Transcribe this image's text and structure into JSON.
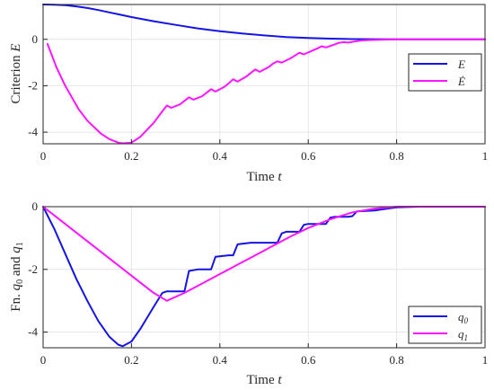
{
  "colors": {
    "blue": "#1414e6",
    "magenta": "#ff14ff"
  },
  "chart_data": [
    {
      "type": "line",
      "xlabel": "Time t",
      "xlabel_text": "Time",
      "xlabel_var": "t",
      "ylabel": "Criterion E",
      "ylabel_text": "Criterion",
      "ylabel_var": "E",
      "xlim": [
        0,
        1
      ],
      "ylim": [
        -4.5,
        1.5
      ],
      "xticks": [
        0,
        0.2,
        0.4,
        0.6,
        0.8,
        1
      ],
      "xtick_labels": [
        "0",
        "0.2",
        "0.4",
        "0.6",
        "0.8",
        "1"
      ],
      "yticks": [
        0,
        -2,
        -4
      ],
      "ytick_labels": [
        "0",
        "-2",
        "-4"
      ],
      "grid": true,
      "legend_position": "right",
      "series": [
        {
          "name": "E",
          "color": "#1414e6",
          "x": [
            0,
            0.025,
            0.05,
            0.075,
            0.1,
            0.125,
            0.15,
            0.175,
            0.2,
            0.25,
            0.3,
            0.35,
            0.4,
            0.45,
            0.5,
            0.55,
            0.6,
            0.65,
            0.7,
            0.75,
            0.8,
            0.85,
            0.9,
            0.95,
            1.0
          ],
          "y": [
            1.5,
            1.49,
            1.47,
            1.42,
            1.35,
            1.26,
            1.16,
            1.06,
            0.96,
            0.78,
            0.62,
            0.47,
            0.35,
            0.25,
            0.17,
            0.1,
            0.06,
            0.03,
            0.01,
            0.005,
            0,
            0,
            0,
            0,
            0
          ]
        },
        {
          "name": "Ė",
          "color": "#ff14ff",
          "x": [
            0.01,
            0.03,
            0.05,
            0.08,
            0.1,
            0.13,
            0.15,
            0.17,
            0.18,
            0.2,
            0.22,
            0.25,
            0.27,
            0.28,
            0.29,
            0.31,
            0.32,
            0.33,
            0.34,
            0.36,
            0.37,
            0.38,
            0.39,
            0.41,
            0.42,
            0.43,
            0.44,
            0.46,
            0.47,
            0.48,
            0.49,
            0.51,
            0.52,
            0.53,
            0.54,
            0.56,
            0.57,
            0.58,
            0.59,
            0.61,
            0.62,
            0.63,
            0.64,
            0.66,
            0.67,
            0.68,
            0.69,
            0.71,
            0.72,
            0.74,
            0.76,
            0.78,
            0.8,
            0.85,
            0.9,
            0.95,
            1.0
          ],
          "y": [
            -0.2,
            -1.2,
            -2.0,
            -3.0,
            -3.5,
            -4.05,
            -4.3,
            -4.45,
            -4.48,
            -4.45,
            -4.2,
            -3.6,
            -3.1,
            -2.85,
            -2.95,
            -2.8,
            -2.65,
            -2.5,
            -2.6,
            -2.45,
            -2.3,
            -2.15,
            -2.25,
            -2.05,
            -1.9,
            -1.72,
            -1.82,
            -1.6,
            -1.45,
            -1.3,
            -1.4,
            -1.2,
            -1.05,
            -0.95,
            -1.0,
            -0.82,
            -0.7,
            -0.58,
            -0.65,
            -0.48,
            -0.4,
            -0.3,
            -0.35,
            -0.22,
            -0.15,
            -0.12,
            -0.14,
            -0.08,
            -0.05,
            -0.03,
            -0.02,
            -0.01,
            0,
            0,
            0,
            0,
            0
          ]
        }
      ]
    },
    {
      "type": "line",
      "xlabel": "Time t",
      "xlabel_text": "Time",
      "xlabel_var": "t",
      "ylabel": "Fn. q0 and q1",
      "ylabel_text": "Fn.",
      "ylabel_var1": "q",
      "ylabel_sub1": "0",
      "ylabel_mid": "and",
      "ylabel_var2": "q",
      "ylabel_sub2": "1",
      "xlim": [
        0,
        1
      ],
      "ylim": [
        -4.5,
        0
      ],
      "xticks": [
        0,
        0.2,
        0.4,
        0.6,
        0.8,
        1
      ],
      "xtick_labels": [
        "0",
        "0.2",
        "0.4",
        "0.6",
        "0.8",
        "1"
      ],
      "yticks": [
        0,
        -2,
        -4
      ],
      "ytick_labels": [
        "0",
        "-2",
        "-4"
      ],
      "grid": true,
      "legend_position": "bottom-right",
      "series": [
        {
          "name": "q0",
          "name_var": "q",
          "name_sub": "0",
          "color": "#1414e6",
          "x": [
            0,
            0.025,
            0.05,
            0.075,
            0.1,
            0.125,
            0.15,
            0.17,
            0.18,
            0.2,
            0.22,
            0.25,
            0.27,
            0.28,
            0.29,
            0.31,
            0.32,
            0.33,
            0.35,
            0.37,
            0.38,
            0.39,
            0.42,
            0.43,
            0.44,
            0.47,
            0.48,
            0.49,
            0.53,
            0.54,
            0.55,
            0.58,
            0.59,
            0.6,
            0.64,
            0.65,
            0.66,
            0.69,
            0.7,
            0.71,
            0.75,
            0.76,
            0.8,
            0.85,
            0.9,
            1.0
          ],
          "y": [
            0,
            -0.7,
            -1.5,
            -2.3,
            -3.0,
            -3.65,
            -4.15,
            -4.4,
            -4.45,
            -4.3,
            -3.9,
            -3.2,
            -2.75,
            -2.7,
            -2.7,
            -2.7,
            -2.7,
            -2.05,
            -2.0,
            -2.0,
            -2.0,
            -1.6,
            -1.55,
            -1.55,
            -1.2,
            -1.15,
            -1.15,
            -1.15,
            -1.15,
            -0.85,
            -0.8,
            -0.8,
            -0.58,
            -0.55,
            -0.55,
            -0.35,
            -0.32,
            -0.32,
            -0.3,
            -0.15,
            -0.12,
            -0.1,
            -0.02,
            0,
            0,
            0
          ]
        },
        {
          "name": "q1",
          "name_var": "q",
          "name_sub": "1",
          "color": "#ff14ff",
          "x": [
            0,
            0.05,
            0.1,
            0.15,
            0.2,
            0.25,
            0.28,
            0.32,
            0.36,
            0.4,
            0.44,
            0.48,
            0.52,
            0.56,
            0.6,
            0.65,
            0.7,
            0.75,
            0.8,
            0.85,
            0.9,
            1.0
          ],
          "y": [
            0,
            -0.55,
            -1.1,
            -1.65,
            -2.2,
            -2.75,
            -3.0,
            -2.75,
            -2.45,
            -2.15,
            -1.85,
            -1.55,
            -1.25,
            -0.95,
            -0.68,
            -0.4,
            -0.18,
            -0.06,
            0,
            0,
            0,
            0
          ]
        }
      ]
    }
  ]
}
